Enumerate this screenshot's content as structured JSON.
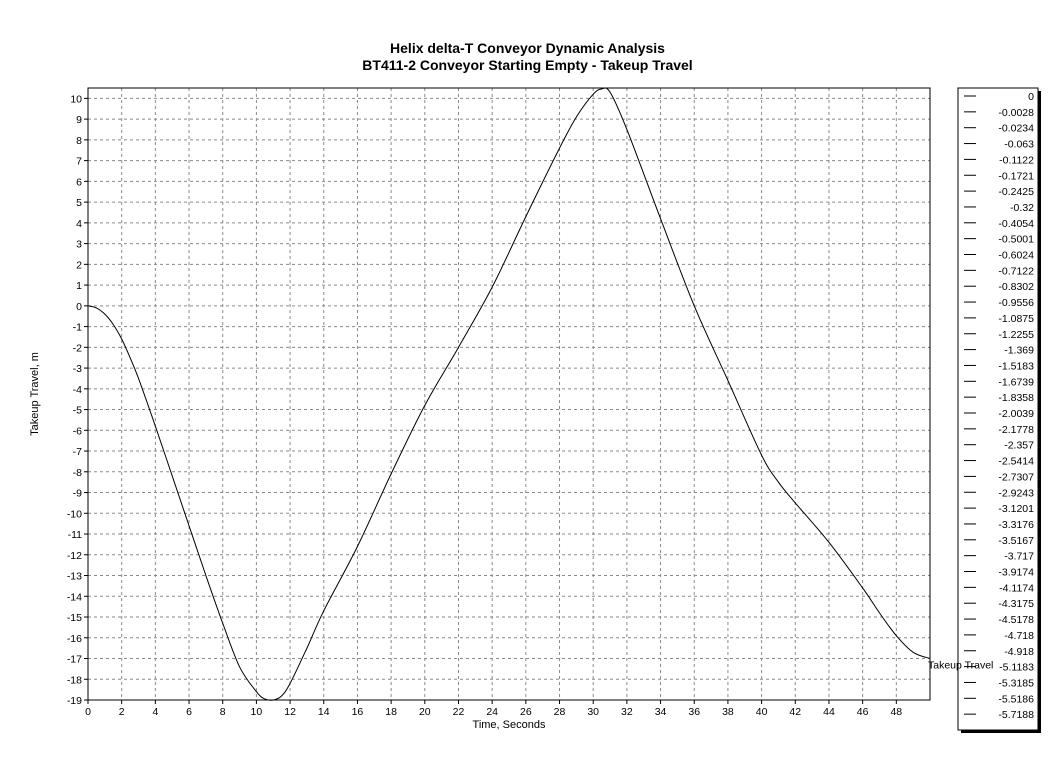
{
  "chart_data": {
    "type": "line",
    "title": "Helix delta-T Conveyor Dynamic Analysis",
    "subtitle": "BT411-2 Conveyor Starting Empty - Takeup Travel",
    "xlabel": "Time, Seconds",
    "ylabel": "Takeup Travel, m",
    "xlim": [
      0,
      50
    ],
    "ylim": [
      -19,
      10.5
    ],
    "x_ticks": [
      0,
      2,
      4,
      6,
      8,
      10,
      12,
      14,
      16,
      18,
      20,
      22,
      24,
      26,
      28,
      30,
      32,
      34,
      36,
      38,
      40,
      42,
      44,
      46,
      48
    ],
    "y_ticks": [
      10,
      9,
      8,
      7,
      6,
      5,
      4,
      3,
      2,
      1,
      0,
      -1,
      -2,
      -3,
      -4,
      -5,
      -6,
      -7,
      -8,
      -9,
      -10,
      -11,
      -12,
      -13,
      -14,
      -15,
      -16,
      -17,
      -18,
      -19
    ],
    "grid": true,
    "series": [
      {
        "name": "Takeup Travel",
        "x": [
          0,
          0.5,
          1,
          1.5,
          2,
          2.5,
          3,
          4,
          5,
          6,
          7,
          8,
          9,
          10,
          10.5,
          11,
          11.5,
          12,
          13,
          14,
          16,
          18,
          20,
          22,
          24,
          26,
          28,
          29,
          30,
          30.5,
          31,
          32,
          34,
          36,
          38,
          40,
          41,
          42,
          44,
          46,
          47,
          48,
          49,
          50
        ],
        "y": [
          0,
          -0.1,
          -0.4,
          -0.9,
          -1.6,
          -2.5,
          -3.5,
          -5.8,
          -8.2,
          -10.6,
          -13.0,
          -15.3,
          -17.4,
          -18.6,
          -18.95,
          -19.0,
          -18.8,
          -18.2,
          -16.5,
          -14.7,
          -11.6,
          -8.1,
          -4.8,
          -2.0,
          0.9,
          4.3,
          7.6,
          9.1,
          10.2,
          10.45,
          10.3,
          8.5,
          4.2,
          0.0,
          -3.6,
          -7.2,
          -8.5,
          -9.5,
          -11.4,
          -13.6,
          -14.8,
          -15.9,
          -16.7,
          -17.0
        ]
      }
    ],
    "end_label": "Takeup Travel",
    "legend": {
      "placement": "right",
      "entries": [
        "0",
        "-0.0028",
        "-0.0234",
        "-0.063",
        "-0.1122",
        "-0.1721",
        "-0.2425",
        "-0.32",
        "-0.4054",
        "-0.5001",
        "-0.6024",
        "-0.7122",
        "-0.8302",
        "-0.9556",
        "-1.0875",
        "-1.2255",
        "-1.369",
        "-1.5183",
        "-1.6739",
        "-1.8358",
        "-2.0039",
        "-2.1778",
        "-2.357",
        "-2.5414",
        "-2.7307",
        "-2.9243",
        "-3.1201",
        "-3.3176",
        "-3.5167",
        "-3.717",
        "-3.9174",
        "-4.1174",
        "-4.3175",
        "-4.5178",
        "-4.718",
        "-4.918",
        "-5.1183",
        "-5.3185",
        "-5.5186",
        "-5.7188"
      ]
    },
    "colors": {
      "line": "#000000",
      "grid": "#8a8a8a",
      "background": "#ffffff"
    }
  }
}
